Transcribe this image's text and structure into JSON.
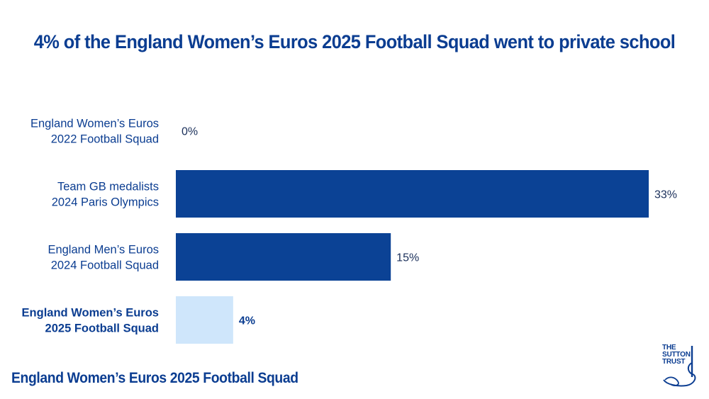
{
  "colors": {
    "title": "#0b3d91",
    "label": "#0b3d91",
    "bar_dark": "#0b4295",
    "bar_highlight": "#cfe6fb"
  },
  "chart_data": {
    "type": "bar",
    "orientation": "horizontal",
    "title": "4% of the England Women’s Euros 2025 Football Squad went to private school",
    "categories": [
      [
        "England Women’s Euros",
        "2022 Football Squad"
      ],
      [
        "Team GB medalists",
        "2024 Paris Olympics"
      ],
      [
        "England Men’s Euros",
        "2024 Football Squad"
      ],
      [
        "England Women’s Euros",
        "2025 Football Squad"
      ]
    ],
    "values": [
      0,
      33,
      15,
      4
    ],
    "value_labels": [
      "0%",
      "33%",
      "15%",
      "4%"
    ],
    "highlight_index": 3,
    "xlim": [
      0,
      33
    ],
    "grid": false,
    "legend": "none"
  },
  "footer": {
    "label": "England Women’s Euros 2025 Football Squad"
  },
  "logo": {
    "lines": [
      "THE",
      "SUTTON",
      "TRUST"
    ],
    "icon": "swan-icon"
  }
}
